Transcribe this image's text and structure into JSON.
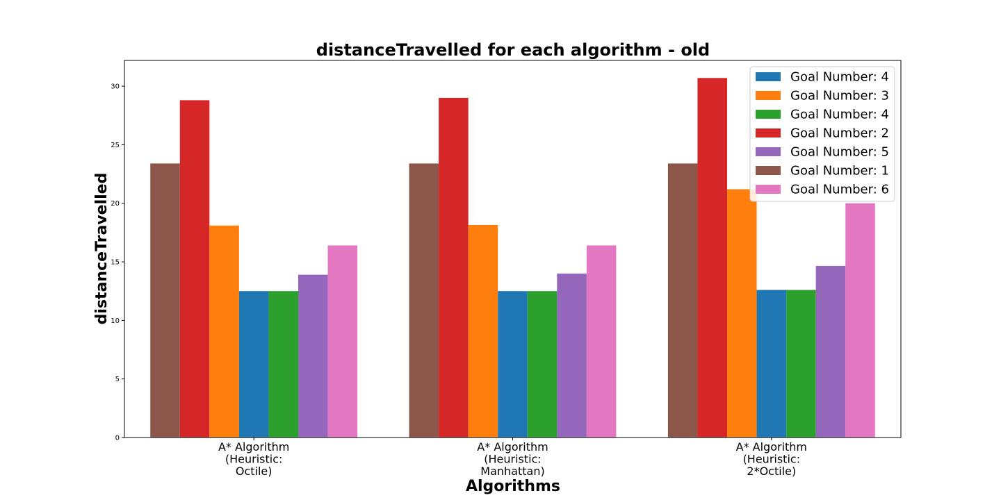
{
  "chart_data": {
    "type": "bar",
    "title": "distanceTravelled for each algorithm - old",
    "xlabel": "Algorithms",
    "ylabel": "distanceTravelled",
    "ylim": [
      0,
      32.2
    ],
    "yticks": [
      "0",
      "5",
      "10",
      "15",
      "20",
      "25",
      "30"
    ],
    "grid": false,
    "legend_position": "top-right",
    "categories": [
      [
        "A* Algorithm",
        "(Heuristic:",
        "Octile)"
      ],
      [
        "A* Algorithm",
        "(Heuristic:",
        "Manhattan)"
      ],
      [
        "A* Algorithm",
        "(Heuristic:",
        "2*Octile)"
      ]
    ],
    "series": [
      {
        "name": "Goal Number: 1",
        "color": "#8c564b",
        "values": [
          23.4,
          23.4,
          23.4
        ]
      },
      {
        "name": "Goal Number: 2",
        "color": "#d62728",
        "values": [
          28.8,
          29.0,
          30.7
        ]
      },
      {
        "name": "Goal Number: 3",
        "color": "#ff7f0e",
        "values": [
          18.1,
          18.15,
          21.2
        ]
      },
      {
        "name": "Goal Number: 4",
        "color": "#1f77b4",
        "values": [
          12.5,
          12.5,
          12.6
        ]
      },
      {
        "name": "Goal Number: 4",
        "color": "#2ca02c",
        "values": [
          12.5,
          12.5,
          12.6
        ]
      },
      {
        "name": "Goal Number: 5",
        "color": "#9467bd",
        "values": [
          13.9,
          14.0,
          14.65
        ]
      },
      {
        "name": "Goal Number: 6",
        "color": "#e377c2",
        "values": [
          16.4,
          16.4,
          20.0
        ]
      }
    ],
    "legend_order": [
      3,
      2,
      4,
      1,
      5,
      0,
      6
    ]
  }
}
